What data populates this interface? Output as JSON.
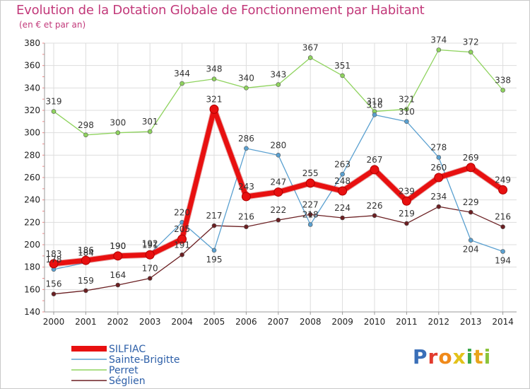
{
  "chart_data": {
    "type": "line",
    "title": "Evolution de la Dotation Globale de Fonctionnement par Habitant",
    "subtitle": "(en € et par an)",
    "x": [
      "2000",
      "2001",
      "2002",
      "2003",
      "2004",
      "2005",
      "2006",
      "2007",
      "2008",
      "2009",
      "2010",
      "2011",
      "2012",
      "2013",
      "2014"
    ],
    "ylim": [
      140,
      380
    ],
    "yticks": [
      140,
      160,
      180,
      200,
      220,
      240,
      260,
      280,
      300,
      320,
      340,
      360,
      380
    ],
    "series": [
      {
        "name": "Séglien",
        "color": "#6b1f22",
        "values": [
          156,
          159,
          164,
          170,
          191,
          217,
          216,
          222,
          227,
          224,
          226,
          219,
          234,
          229,
          216
        ]
      },
      {
        "name": "Perret",
        "color": "#8fd35e",
        "values": [
          319,
          298,
          300,
          301,
          344,
          348,
          340,
          343,
          367,
          351,
          319,
          321,
          374,
          372,
          338
        ]
      },
      {
        "name": "Sainte-Brigitte",
        "color": "#5aa0d0",
        "values": [
          178,
          184,
          190,
          192,
          220,
          195,
          286,
          280,
          218,
          263,
          316,
          310,
          278,
          204,
          194
        ]
      },
      {
        "name": "SILFIAC",
        "color": "#e81010",
        "values": [
          183,
          186,
          190,
          191,
          205,
          321,
          243,
          247,
          255,
          248,
          267,
          239,
          260,
          269,
          249
        ]
      }
    ],
    "legend": [
      "SILFIAC",
      "Sainte-Brigitte",
      "Perret",
      "Séglien"
    ],
    "legend_position": "bottom-left"
  },
  "logo": {
    "text": "Proxiti"
  }
}
